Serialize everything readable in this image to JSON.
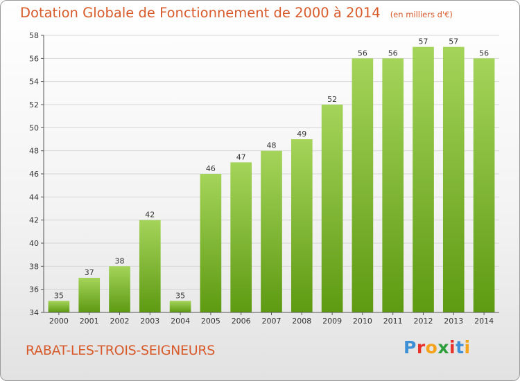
{
  "header": {
    "title": "Dotation Globale de Fonctionnement de 2000 à 2014",
    "subtitle": "(en milliers d'€)"
  },
  "footer": {
    "commune": "RABAT-LES-TROIS-SEIGNEURS",
    "logo_letters": [
      "P",
      "r",
      "o",
      "x",
      "i",
      "t",
      "i"
    ],
    "logo_colors": [
      "#3d8fd6",
      "#e8312b",
      "#f5a31a",
      "#2c9e3c",
      "#e8312b",
      "#3d8fd6",
      "#f5a31a"
    ]
  },
  "colors": {
    "bar_light": "#a4d45a",
    "bar_dark": "#5e9a12",
    "grid": "#d6d6d6",
    "title": "#d85a2a"
  },
  "chart_data": {
    "type": "bar",
    "title": "Dotation Globale de Fonctionnement de 2000 à 2014",
    "subtitle": "(en milliers d'€)",
    "categories": [
      "2000",
      "2001",
      "2002",
      "2003",
      "2004",
      "2005",
      "2006",
      "2007",
      "2008",
      "2009",
      "2010",
      "2011",
      "2012",
      "2013",
      "2014"
    ],
    "values": [
      35,
      37,
      38,
      42,
      35,
      46,
      47,
      48,
      49,
      52,
      56,
      56,
      57,
      57,
      56
    ],
    "ylim": [
      34,
      58
    ],
    "yticks": [
      34,
      36,
      38,
      40,
      42,
      44,
      46,
      48,
      50,
      52,
      54,
      56,
      58
    ],
    "grid": true,
    "xlabel": "",
    "ylabel": ""
  }
}
